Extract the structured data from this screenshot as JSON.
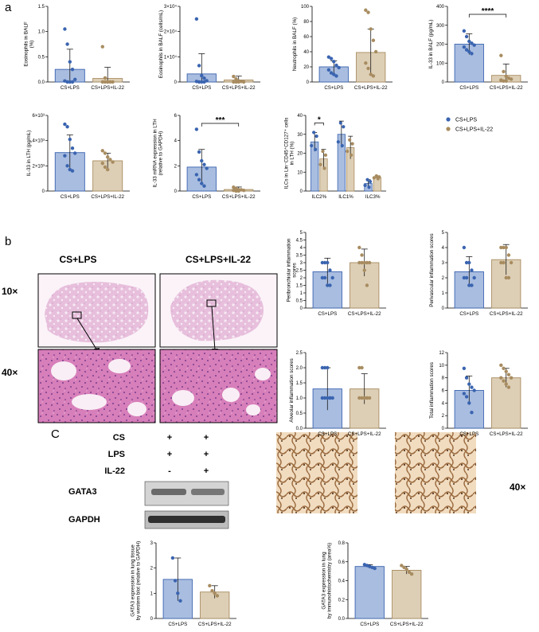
{
  "figure": {
    "panel_labels": [
      "a",
      "b",
      "C"
    ],
    "colors": {
      "CS+LPS": "#3a64b0",
      "CS+LPS+IL-22": "#a88c60",
      "bar_fill_lps": "#a9bde0",
      "bar_fill_il22": "#ddcfb6"
    }
  },
  "histology": {
    "group_headers": [
      "CS+LPS",
      "CS+LPS+IL-22"
    ],
    "magnifications": [
      "10×",
      "40×"
    ],
    "ihc_magnification": "40×"
  },
  "western_blot": {
    "treatment_rows": [
      {
        "label": "CS",
        "marks": [
          "+",
          "+"
        ]
      },
      {
        "label": "LPS",
        "marks": [
          "+",
          "+"
        ]
      },
      {
        "label": "IL-22",
        "marks": [
          "-",
          "+"
        ]
      }
    ],
    "bands": [
      "GATA3",
      "GAPDH"
    ]
  },
  "chart_data": [
    {
      "id": "eos_pct",
      "type": "bar",
      "categories": [
        "CS+LPS",
        "CS+LPS+IL-22"
      ],
      "ylabel": "Eosinophils in BALF\n(%)",
      "ylim": [
        0,
        1.5
      ],
      "yticks": [
        "0.0",
        "0.5",
        "1.0",
        "1.5"
      ],
      "ytick_values": [
        0,
        0.5,
        1.0,
        1.5
      ],
      "values": [
        0.25,
        0.07
      ],
      "errors": [
        0.4,
        0.22
      ],
      "points": [
        [
          1.05,
          0.75,
          0.4,
          0.25,
          0.05,
          0.02,
          0.0,
          0.0,
          0.0
        ],
        [
          0.7,
          0.08,
          0.0,
          0.0,
          0.0,
          0.0,
          0.0,
          0.0
        ]
      ]
    },
    {
      "id": "eos_cells",
      "type": "bar",
      "categories": [
        "CS+LPS",
        "CS+LPS+IL-22"
      ],
      "ylabel": "Eosinophils in BALF (cells/mL)",
      "ylim": [
        0,
        30000
      ],
      "yticks": [
        "0",
        "1×10⁴",
        "2×10⁴",
        "3×10⁴"
      ],
      "ytick_values": [
        0,
        10000,
        20000,
        30000
      ],
      "values": [
        3200,
        800
      ],
      "errors": [
        8000,
        1500
      ],
      "points": [
        [
          25000,
          6500,
          2500,
          1500,
          500,
          200,
          0,
          0,
          0
        ],
        [
          2200,
          1200,
          400,
          200,
          0,
          0,
          0,
          0
        ]
      ]
    },
    {
      "id": "neut",
      "type": "bar",
      "categories": [
        "CS+LPS",
        "CS+LPS+IL-22"
      ],
      "ylabel": "Neutrophils in BALF (%)",
      "ylim": [
        0,
        100
      ],
      "yticks": [
        "0",
        "20",
        "40",
        "60",
        "80",
        "100"
      ],
      "ytick_values": [
        0,
        20,
        40,
        60,
        80,
        100
      ],
      "values": [
        20,
        39
      ],
      "errors": [
        8,
        31
      ],
      "points": [
        [
          33,
          31,
          27,
          22,
          19,
          16,
          12,
          10,
          8
        ],
        [
          95,
          92,
          70,
          55,
          40,
          25,
          18,
          10,
          8
        ]
      ]
    },
    {
      "id": "il33_balf",
      "type": "bar",
      "categories": [
        "CS+LPS",
        "CS+LPS+IL-22"
      ],
      "ylabel": "IL-33 in BALF (pg/mL)",
      "ylim": [
        0,
        400
      ],
      "yticks": [
        "0",
        "100",
        "200",
        "300",
        "400"
      ],
      "ytick_values": [
        0,
        100,
        200,
        300,
        400
      ],
      "values": [
        200,
        35
      ],
      "errors": [
        55,
        60
      ],
      "points": [
        [
          270,
          240,
          215,
          205,
          195,
          185,
          170,
          160,
          150
        ],
        [
          140,
          55,
          30,
          20,
          15,
          10,
          5,
          5
        ]
      ],
      "significance": "****"
    },
    {
      "id": "il33_lth",
      "type": "bar",
      "categories": [
        "CS+LPS",
        "CS+LPS+IL-22"
      ],
      "ylabel": "IL-33 in LTH (pg/mL)",
      "ylim": [
        0,
        6000
      ],
      "yticks": [
        "0",
        "2×10³",
        "4×10³",
        "6×10³"
      ],
      "ytick_values": [
        0,
        2000,
        4000,
        6000
      ],
      "values": [
        3050,
        2400
      ],
      "errors": [
        1400,
        600
      ],
      "points": [
        [
          5300,
          5100,
          4100,
          3400,
          3000,
          2800,
          2000,
          1700,
          1600
        ],
        [
          3200,
          3000,
          2700,
          2500,
          2300,
          2200,
          1900,
          1700
        ]
      ]
    },
    {
      "id": "il33_mrna",
      "type": "bar",
      "categories": [
        "CS+LPS",
        "CS+LPS+IL-22"
      ],
      "ylabel": "IL-33 mRNA expression in LTH\n(relative to GAPDH)",
      "ylim": [
        0,
        6
      ],
      "yticks": [
        "0",
        "2",
        "4",
        "6"
      ],
      "ytick_values": [
        0,
        2,
        4,
        6
      ],
      "values": [
        1.9,
        0.12
      ],
      "errors": [
        1.4,
        0.2
      ],
      "points": [
        [
          4.9,
          3.1,
          2.4,
          2.1,
          1.8,
          1.3,
          0.9,
          0.6,
          0.4
        ],
        [
          0.3,
          0.2,
          0.1,
          0.1,
          0.05,
          0.05,
          0.0,
          0.0
        ]
      ],
      "significance": "***"
    },
    {
      "id": "ilc",
      "type": "bar",
      "categories": [
        "ILC2%",
        "ILC1%",
        "ILC3%"
      ],
      "ylabel": "ILCs in Lin⁻CD45⁺CD127⁺ cells\nin LTH (%)",
      "ylim": [
        0,
        40
      ],
      "yticks": [
        "0",
        "10",
        "20",
        "30",
        "40"
      ],
      "ytick_values": [
        0,
        10,
        20,
        30,
        40
      ],
      "series": [
        {
          "name": "CS+LPS",
          "values": [
            26,
            30,
            4
          ],
          "errors": [
            5,
            7,
            2
          ],
          "points": [
            [
              31,
              29,
              24,
              22
            ],
            [
              36,
              34,
              26,
              24
            ],
            [
              6,
              5,
              3,
              2
            ]
          ]
        },
        {
          "name": "CS+LPS+IL-22",
          "values": [
            17,
            23,
            7
          ],
          "errors": [
            5,
            6,
            1
          ],
          "points": [
            [
              21,
              19,
              14,
              12
            ],
            [
              27,
              25,
              21,
              19
            ],
            [
              8,
              7.5,
              7,
              6.5
            ]
          ]
        }
      ],
      "significance": "*"
    },
    {
      "id": "peribronchiolar",
      "type": "bar",
      "categories": [
        "CS+LPS",
        "CS+LPS+IL-22"
      ],
      "ylabel": "Peribronchiolar inflammation\nscores",
      "ylim": [
        0,
        5
      ],
      "yticks": [
        "0",
        "0.5",
        "1",
        "1.5",
        "2",
        "2.5",
        "3",
        "3.5",
        "4",
        "4.5",
        "5"
      ],
      "ytick_values": [
        0,
        0.5,
        1,
        1.5,
        2,
        2.5,
        3,
        3.5,
        4,
        4.5,
        5
      ],
      "values": [
        2.4,
        3.0
      ],
      "errors": [
        0.9,
        0.9
      ],
      "points": [
        [
          3.0,
          3.0,
          3.0,
          2.5,
          2.0,
          2.0,
          2.0,
          1.5,
          1.5
        ],
        [
          4.0,
          3.5,
          3.0,
          3.0,
          3.0,
          3.0,
          3.0,
          2.5,
          1.5
        ]
      ]
    },
    {
      "id": "perivascular",
      "type": "bar",
      "categories": [
        "CS+LPS",
        "CS+LPS+IL-22"
      ],
      "ylabel": "Perivascular inflammation scores",
      "ylim": [
        0,
        5
      ],
      "yticks": [
        "0",
        "1",
        "2",
        "3",
        "4",
        "5"
      ],
      "ytick_values": [
        0,
        1,
        2,
        3,
        4,
        5
      ],
      "values": [
        2.4,
        3.2
      ],
      "errors": [
        1.0,
        1.0
      ],
      "points": [
        [
          4.0,
          3.0,
          3.0,
          2.5,
          2.0,
          2.0,
          2.0,
          1.5,
          1.5
        ],
        [
          4.0,
          4.0,
          4.0,
          3.5,
          3.0,
          3.0,
          3.0,
          2.0,
          2.0
        ]
      ]
    },
    {
      "id": "alveolar",
      "type": "bar",
      "categories": [
        "CS+LPS",
        "CS+LPS+IL-22"
      ],
      "ylabel": "Alveolar inflammation scores",
      "ylim": [
        0,
        2.5
      ],
      "yticks": [
        "0.0",
        "0.5",
        "1.0",
        "1.5",
        "2.0",
        "2.5"
      ],
      "ytick_values": [
        0,
        0.5,
        1.0,
        1.5,
        2.0,
        2.5
      ],
      "values": [
        1.3,
        1.3
      ],
      "errors": [
        0.7,
        0.5
      ],
      "points": [
        [
          2.0,
          2.0,
          2.0,
          1.0,
          1.0,
          1.0,
          1.0,
          1.0,
          1.0
        ],
        [
          2.0,
          2.0,
          1.0,
          1.0,
          1.0,
          1.0,
          1.0,
          1.0,
          1.0
        ]
      ]
    },
    {
      "id": "total",
      "type": "bar",
      "categories": [
        "CS+LPS",
        "CS+LPS+IL-22"
      ],
      "ylabel": "Total inflammation scores",
      "ylim": [
        0,
        12
      ],
      "yticks": [
        "0",
        "2",
        "4",
        "6",
        "8",
        "10",
        "12"
      ],
      "ytick_values": [
        0,
        2,
        4,
        6,
        8,
        10,
        12
      ],
      "values": [
        6.0,
        8.0
      ],
      "errors": [
        2.3,
        1.5
      ],
      "points": [
        [
          9.5,
          8.0,
          7.0,
          6.5,
          6.0,
          5.5,
          5.0,
          4.0,
          2.5
        ],
        [
          10.0,
          9.5,
          9.0,
          8.5,
          8.0,
          8.0,
          7.5,
          7.0,
          6.5
        ]
      ]
    },
    {
      "id": "gata3_wb",
      "type": "bar",
      "categories": [
        "CS+LPS",
        "CS+LPS+IL-22"
      ],
      "ylabel": "GATA3 expression in lung tissue\nby western blot (relative to GAPDH)",
      "ylim": [
        0,
        3
      ],
      "yticks": [
        "0",
        "1",
        "2",
        "3"
      ],
      "ytick_values": [
        0,
        1,
        2,
        3
      ],
      "values": [
        1.55,
        1.05
      ],
      "errors": [
        0.85,
        0.25
      ],
      "points": [
        [
          2.4,
          1.5,
          1.0,
          0.7
        ],
        [
          1.3,
          1.1,
          1.0,
          0.9
        ]
      ]
    },
    {
      "id": "gata3_ihc",
      "type": "bar",
      "categories": [
        "CS+LPS",
        "CS+LPS+IL-22"
      ],
      "ylabel": "GATA3 expression in lung\nby immunohistochemistry (area%)",
      "ylim": [
        0,
        0.8
      ],
      "yticks": [
        "0.0",
        "0.2",
        "0.4",
        "0.6",
        "0.8"
      ],
      "ytick_values": [
        0,
        0.2,
        0.4,
        0.6,
        0.8
      ],
      "values": [
        0.55,
        0.51
      ],
      "errors": [
        0.02,
        0.04
      ],
      "points": [
        [
          0.57,
          0.56,
          0.55,
          0.54,
          0.53
        ],
        [
          0.56,
          0.54,
          0.52,
          0.49,
          0.47
        ]
      ]
    }
  ]
}
